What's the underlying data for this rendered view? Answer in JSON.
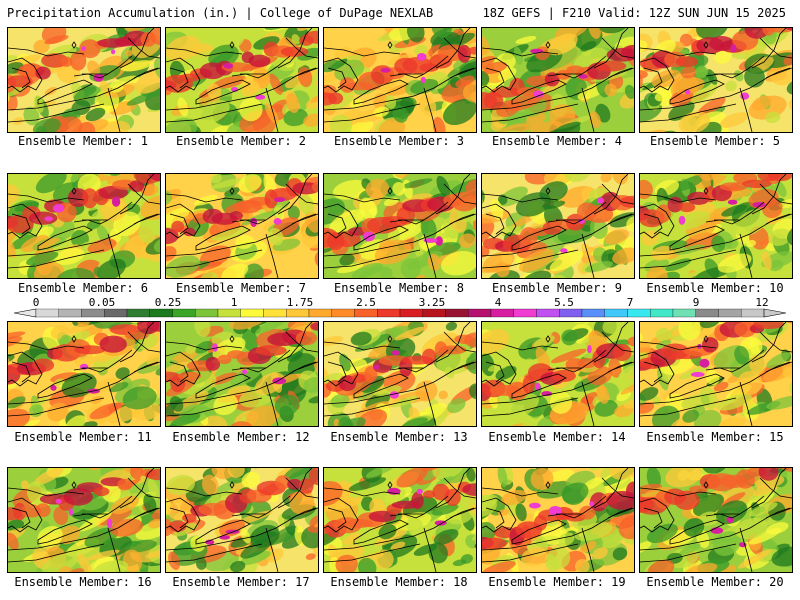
{
  "header": {
    "left_title": "Precipitation Accumulation (in.) | College of DuPage NEXLAB",
    "right_title": "18Z GEFS | F210 Valid: 12Z SUN JUN 15 2025"
  },
  "colorbar": {
    "labels": [
      "0",
      "0.05",
      "0.25",
      "1",
      "1.75",
      "2.5",
      "3.25",
      "4",
      "5.5",
      "7",
      "9",
      "12"
    ],
    "colors": [
      "#d8d8d8",
      "#b4b4b4",
      "#8c8c8c",
      "#6a6a6a",
      "#2e7d32",
      "#1b7a1b",
      "#3aa526",
      "#7cc43a",
      "#c6e03c",
      "#fbfb3c",
      "#ffe13a",
      "#ffc83a",
      "#ffaa2e",
      "#ff8a28",
      "#f8612a",
      "#ec3a2a",
      "#d81e22",
      "#b8141e",
      "#961432",
      "#b4126e",
      "#d81ea0",
      "#f03cd0",
      "#c050f0",
      "#8060f0",
      "#5a8ef8",
      "#40c8f8",
      "#38e8f0",
      "#40e8c8",
      "#6ee0b4",
      "#8a8a8a",
      "#a4a4a4",
      "#c8c8c8"
    ]
  },
  "panels": [
    {
      "label": "Ensemble Member: 1"
    },
    {
      "label": "Ensemble Member: 2"
    },
    {
      "label": "Ensemble Member: 3"
    },
    {
      "label": "Ensemble Member: 4"
    },
    {
      "label": "Ensemble Member: 5"
    },
    {
      "label": "Ensemble Member: 6"
    },
    {
      "label": "Ensemble Member: 7"
    },
    {
      "label": "Ensemble Member: 8"
    },
    {
      "label": "Ensemble Member: 9"
    },
    {
      "label": "Ensemble Member: 10"
    },
    {
      "label": "Ensemble Member: 11"
    },
    {
      "label": "Ensemble Member: 12"
    },
    {
      "label": "Ensemble Member: 13"
    },
    {
      "label": "Ensemble Member: 14"
    },
    {
      "label": "Ensemble Member: 15"
    },
    {
      "label": "Ensemble Member: 16"
    },
    {
      "label": "Ensemble Member: 17"
    },
    {
      "label": "Ensemble Member: 18"
    },
    {
      "label": "Ensemble Member: 19"
    },
    {
      "label": "Ensemble Member: 20"
    }
  ]
}
